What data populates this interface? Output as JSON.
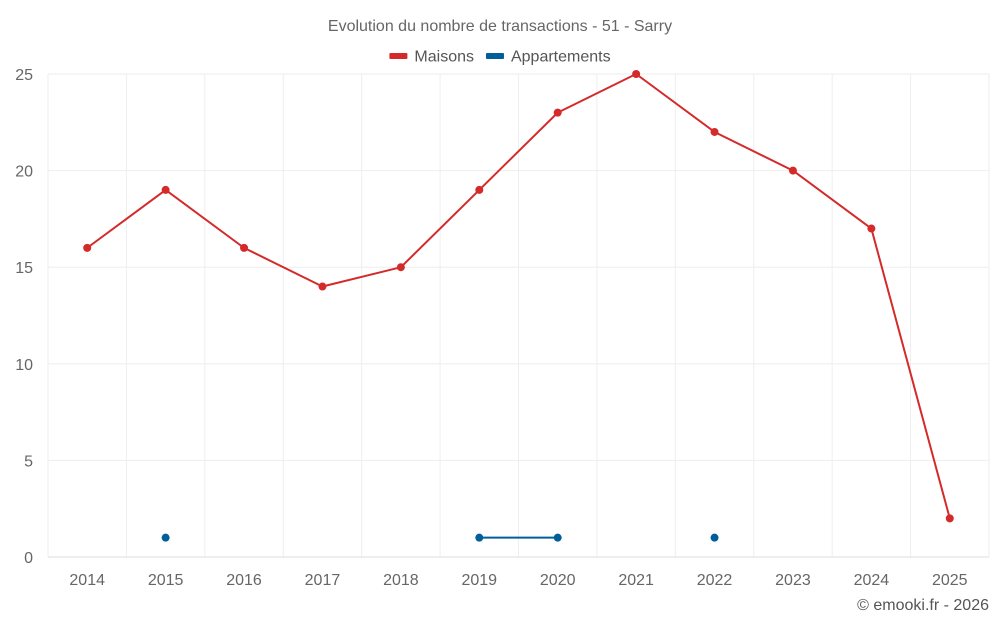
{
  "chart_data": {
    "type": "line",
    "title": "Evolution du nombre de transactions - 51 - Sarry",
    "xlabel": "",
    "ylabel": "",
    "categories": [
      "2014",
      "2015",
      "2016",
      "2017",
      "2018",
      "2019",
      "2020",
      "2021",
      "2022",
      "2023",
      "2024",
      "2025"
    ],
    "ylim": [
      0,
      25
    ],
    "yticks": [
      0,
      5,
      10,
      15,
      20,
      25
    ],
    "grid": true,
    "legend_position": "top",
    "series": [
      {
        "name": "Maisons",
        "color": "#d42a2a",
        "values": [
          16,
          19,
          16,
          14,
          15,
          19,
          23,
          25,
          22,
          20,
          17,
          2
        ]
      },
      {
        "name": "Appartements",
        "color": "#005f99",
        "values": [
          null,
          1,
          null,
          null,
          null,
          1,
          1,
          null,
          1,
          null,
          null,
          null
        ]
      }
    ]
  },
  "credit": "© emooki.fr - 2026"
}
